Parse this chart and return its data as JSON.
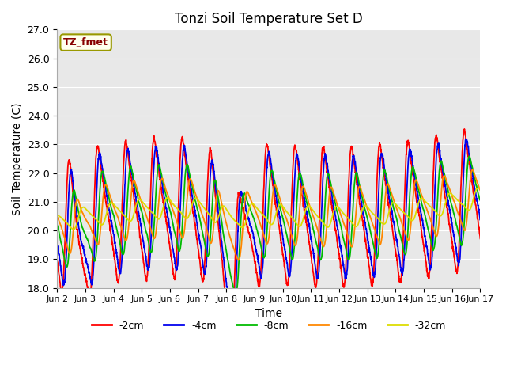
{
  "title": "Tonzi Soil Temperature Set D",
  "xlabel": "Time",
  "ylabel": "Soil Temperature (C)",
  "ylim": [
    18.0,
    27.0
  ],
  "yticks": [
    18.0,
    19.0,
    20.0,
    21.0,
    22.0,
    23.0,
    24.0,
    25.0,
    26.0,
    27.0
  ],
  "label_text": "TZ_fmet",
  "label_box_color": "#ffffee",
  "label_box_edge": "#999900",
  "label_text_color": "#880000",
  "plot_bg_color": "#e8e8e8",
  "fig_bg_color": "#ffffff",
  "grid_color": "#ffffff",
  "line_colors": {
    "-2cm": "#ff0000",
    "-4cm": "#0000ee",
    "-8cm": "#00bb00",
    "-16cm": "#ff8800",
    "-32cm": "#dddd00"
  },
  "line_labels": [
    "-2cm",
    "-4cm",
    "-8cm",
    "-16cm",
    "-32cm"
  ],
  "xtick_labels": [
    "Jun 2",
    "Jun 3",
    "Jun 4",
    "Jun 5",
    "Jun 6",
    "Jun 7",
    "Jun 8",
    "Jun 9",
    "Jun 10",
    "Jun 11",
    "Jun 12",
    "Jun 13",
    "Jun 14",
    "Jun 15",
    "Jun 16",
    "Jun 17"
  ],
  "n_days": 15,
  "pts_per_day": 144
}
